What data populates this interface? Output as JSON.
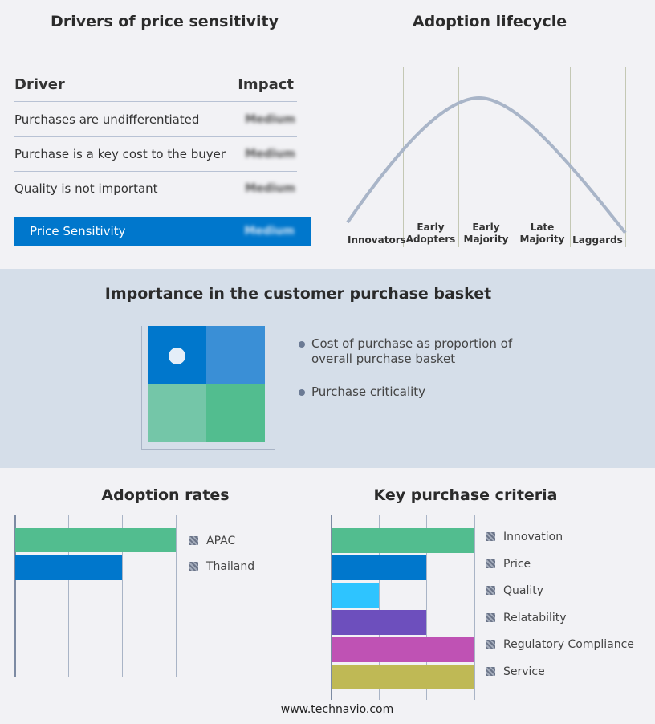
{
  "drivers": {
    "title": "Drivers of price sensitivity",
    "header_driver": "Driver",
    "header_impact": "Impact",
    "rows": [
      {
        "driver": "Purchases are undifferentiated",
        "impact": "Medium"
      },
      {
        "driver": "Purchase is a key cost to the buyer",
        "impact": "Medium"
      },
      {
        "driver": "Quality is not important",
        "impact": "Medium"
      }
    ],
    "summary": {
      "label": "Price Sensitivity",
      "impact": "Medium"
    },
    "accent": "#0077cc"
  },
  "lifecycle": {
    "title": "Adoption lifecycle",
    "stages": [
      "Innovators",
      "Early Adopters",
      "Early Majority",
      "Late Majority",
      "Laggards"
    ]
  },
  "basket": {
    "title": "Importance in the customer purchase basket",
    "legend": [
      "Cost of purchase as proportion of overall purchase basket",
      "Purchase criticality"
    ],
    "colors": [
      "#0077cc",
      "#3a8fd6",
      "#74c6a8",
      "#52bd8f"
    ]
  },
  "chart_data": [
    {
      "type": "bar",
      "title": "Adoption rates",
      "orientation": "horizontal",
      "categories": [
        "APAC",
        "Thailand"
      ],
      "values": [
        3,
        2
      ],
      "xlim": [
        0,
        3
      ],
      "grid": true,
      "legend": "right",
      "colors": [
        "#52bd8f",
        "#0077cc"
      ]
    },
    {
      "type": "bar",
      "title": "Key purchase criteria",
      "orientation": "horizontal",
      "categories": [
        "Innovation",
        "Price",
        "Quality",
        "Relatability",
        "Regulatory Compliance",
        "Service"
      ],
      "values": [
        3,
        2,
        1,
        2,
        3,
        3
      ],
      "xlim": [
        0,
        3
      ],
      "grid": true,
      "legend": "right",
      "colors": [
        "#52bd8f",
        "#0077cc",
        "#2ec4ff",
        "#6d4fbd",
        "#bf52b4",
        "#bfb955"
      ]
    }
  ],
  "footer": "www.technavio.com"
}
